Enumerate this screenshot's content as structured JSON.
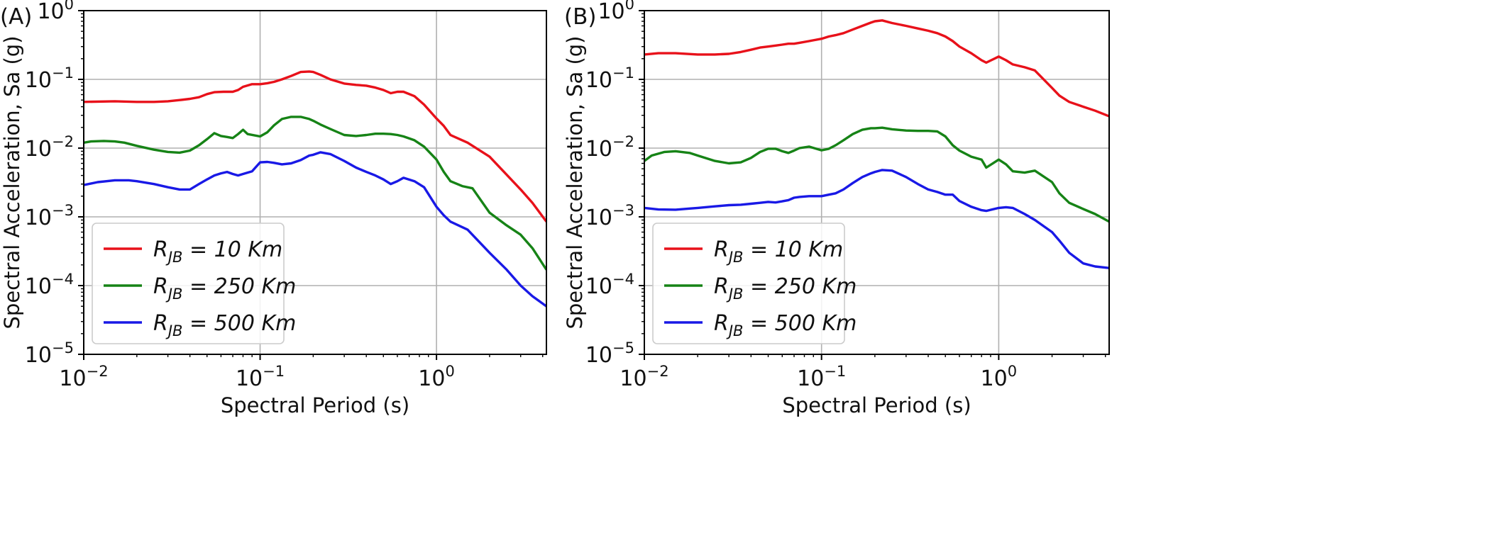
{
  "chart_data": [
    {
      "type": "line",
      "panel_label": "(A)",
      "xlabel": "Spectral Period (s)",
      "ylabel": "Spectral Acceleration, Sa (g)",
      "xscale": "log",
      "yscale": "log",
      "xlim": [
        0.01,
        4.2
      ],
      "ylim": [
        1e-05,
        1
      ],
      "x_ticks": [
        {
          "base": "10",
          "exp": "−2"
        },
        {
          "base": "10",
          "exp": "−1"
        },
        {
          "base": "10",
          "exp": "0"
        }
      ],
      "y_ticks": [
        {
          "base": "10",
          "exp": "−5"
        },
        {
          "base": "10",
          "exp": "−4"
        },
        {
          "base": "10",
          "exp": "−3"
        },
        {
          "base": "10",
          "exp": "−2"
        },
        {
          "base": "10",
          "exp": "−1"
        },
        {
          "base": "10",
          "exp": "0"
        }
      ],
      "grid": true,
      "legend_position": "lower-left",
      "series": [
        {
          "name": "RJB = 10 Km",
          "legend_R": "R",
          "legend_sub": "JB",
          "legend_rest": " = 10 Km",
          "color": "#e8111a",
          "x": [
            0.01,
            0.015,
            0.02,
            0.025,
            0.03,
            0.035,
            0.04,
            0.045,
            0.05,
            0.055,
            0.062,
            0.07,
            0.075,
            0.08,
            0.09,
            0.1,
            0.11,
            0.12,
            0.133,
            0.15,
            0.17,
            0.19,
            0.2,
            0.22,
            0.25,
            0.3,
            0.35,
            0.4,
            0.45,
            0.5,
            0.55,
            0.6,
            0.65,
            0.75,
            0.85,
            1.0,
            1.1,
            1.2,
            1.5,
            2.0,
            2.5,
            3.0,
            3.5,
            4.2
          ],
          "y": [
            0.047,
            0.048,
            0.047,
            0.047,
            0.048,
            0.05,
            0.052,
            0.055,
            0.061,
            0.065,
            0.066,
            0.066,
            0.07,
            0.078,
            0.085,
            0.085,
            0.088,
            0.092,
            0.1,
            0.112,
            0.128,
            0.13,
            0.128,
            0.116,
            0.1,
            0.087,
            0.083,
            0.081,
            0.076,
            0.07,
            0.063,
            0.066,
            0.066,
            0.057,
            0.043,
            0.027,
            0.021,
            0.0155,
            0.012,
            0.0075,
            0.0041,
            0.0025,
            0.0016,
            0.00085
          ]
        },
        {
          "name": "RJB = 250 Km",
          "legend_R": "R",
          "legend_sub": "JB",
          "legend_rest": " = 250 Km",
          "color": "#168316",
          "x": [
            0.01,
            0.011,
            0.013,
            0.015,
            0.017,
            0.02,
            0.025,
            0.03,
            0.035,
            0.04,
            0.045,
            0.05,
            0.055,
            0.06,
            0.065,
            0.07,
            0.075,
            0.08,
            0.085,
            0.1,
            0.11,
            0.12,
            0.133,
            0.15,
            0.17,
            0.19,
            0.2,
            0.22,
            0.25,
            0.3,
            0.35,
            0.4,
            0.45,
            0.5,
            0.55,
            0.6,
            0.65,
            0.75,
            0.85,
            1.0,
            1.1,
            1.2,
            1.4,
            1.6,
            2.0,
            2.5,
            3.0,
            3.5,
            4.2
          ],
          "y": [
            0.012,
            0.0125,
            0.0127,
            0.0125,
            0.012,
            0.0108,
            0.0095,
            0.0088,
            0.0086,
            0.0092,
            0.011,
            0.0135,
            0.0165,
            0.015,
            0.0145,
            0.014,
            0.016,
            0.0185,
            0.016,
            0.0148,
            0.017,
            0.0215,
            0.0265,
            0.0285,
            0.0285,
            0.0265,
            0.025,
            0.022,
            0.019,
            0.0155,
            0.015,
            0.0155,
            0.0162,
            0.0162,
            0.016,
            0.0155,
            0.0148,
            0.013,
            0.0105,
            0.0068,
            0.0045,
            0.0033,
            0.0028,
            0.0026,
            0.00115,
            0.00075,
            0.00055,
            0.00035,
            0.00017
          ]
        },
        {
          "name": "RJB = 500 Km",
          "legend_R": "R",
          "legend_sub": "JB",
          "legend_rest": " = 500 Km",
          "color": "#1919e6",
          "x": [
            0.01,
            0.012,
            0.015,
            0.018,
            0.02,
            0.025,
            0.03,
            0.035,
            0.04,
            0.045,
            0.05,
            0.055,
            0.06,
            0.065,
            0.07,
            0.075,
            0.08,
            0.09,
            0.1,
            0.11,
            0.12,
            0.133,
            0.15,
            0.17,
            0.19,
            0.2,
            0.22,
            0.25,
            0.3,
            0.35,
            0.4,
            0.45,
            0.5,
            0.55,
            0.6,
            0.65,
            0.75,
            0.85,
            1.0,
            1.1,
            1.2,
            1.5,
            2.0,
            2.5,
            3.0,
            3.5,
            4.2
          ],
          "y": [
            0.0029,
            0.0032,
            0.0034,
            0.0034,
            0.0033,
            0.003,
            0.0027,
            0.0025,
            0.0025,
            0.003,
            0.0035,
            0.004,
            0.0043,
            0.0045,
            0.0042,
            0.004,
            0.0042,
            0.0046,
            0.0062,
            0.0063,
            0.0061,
            0.0058,
            0.006,
            0.0067,
            0.0078,
            0.008,
            0.0087,
            0.0082,
            0.0065,
            0.0052,
            0.0045,
            0.004,
            0.0035,
            0.003,
            0.0033,
            0.0037,
            0.0033,
            0.0027,
            0.0014,
            0.00105,
            0.00085,
            0.00065,
            0.0003,
            0.00017,
            0.0001,
            7e-05,
            5e-05
          ]
        }
      ]
    },
    {
      "type": "line",
      "panel_label": "(B)",
      "xlabel": "Spectral Period (s)",
      "ylabel": "Spectral Acceleration, Sa (g)",
      "xscale": "log",
      "yscale": "log",
      "xlim": [
        0.01,
        4.2
      ],
      "ylim": [
        1e-05,
        1
      ],
      "x_ticks": [
        {
          "base": "10",
          "exp": "−2"
        },
        {
          "base": "10",
          "exp": "−1"
        },
        {
          "base": "10",
          "exp": "0"
        }
      ],
      "y_ticks": [
        {
          "base": "10",
          "exp": "−5"
        },
        {
          "base": "10",
          "exp": "−4"
        },
        {
          "base": "10",
          "exp": "−3"
        },
        {
          "base": "10",
          "exp": "−2"
        },
        {
          "base": "10",
          "exp": "−1"
        },
        {
          "base": "10",
          "exp": "0"
        }
      ],
      "grid": true,
      "legend_position": "lower-left",
      "series": [
        {
          "name": "RJB = 10 Km",
          "legend_R": "R",
          "legend_sub": "JB",
          "legend_rest": " = 10 Km",
          "color": "#e8111a",
          "x": [
            0.01,
            0.012,
            0.015,
            0.02,
            0.025,
            0.03,
            0.035,
            0.04,
            0.045,
            0.05,
            0.055,
            0.06,
            0.065,
            0.07,
            0.075,
            0.085,
            0.1,
            0.11,
            0.12,
            0.133,
            0.15,
            0.17,
            0.19,
            0.2,
            0.22,
            0.25,
            0.3,
            0.35,
            0.4,
            0.45,
            0.5,
            0.55,
            0.6,
            0.7,
            0.8,
            0.85,
            1.0,
            1.1,
            1.2,
            1.4,
            1.6,
            2.0,
            2.2,
            2.5,
            3.0,
            3.5,
            4.2
          ],
          "y": [
            0.23,
            0.24,
            0.24,
            0.23,
            0.23,
            0.235,
            0.25,
            0.27,
            0.29,
            0.3,
            0.31,
            0.32,
            0.33,
            0.33,
            0.34,
            0.36,
            0.39,
            0.42,
            0.44,
            0.47,
            0.53,
            0.6,
            0.67,
            0.7,
            0.72,
            0.66,
            0.6,
            0.55,
            0.51,
            0.47,
            0.42,
            0.36,
            0.3,
            0.24,
            0.19,
            0.175,
            0.215,
            0.19,
            0.165,
            0.15,
            0.135,
            0.075,
            0.058,
            0.047,
            0.04,
            0.035,
            0.029
          ]
        },
        {
          "name": "RJB = 250 Km",
          "legend_R": "R",
          "legend_sub": "JB",
          "legend_rest": " = 250 Km",
          "color": "#168316",
          "x": [
            0.01,
            0.011,
            0.013,
            0.015,
            0.018,
            0.02,
            0.025,
            0.03,
            0.035,
            0.04,
            0.045,
            0.05,
            0.055,
            0.06,
            0.065,
            0.07,
            0.075,
            0.085,
            0.1,
            0.11,
            0.12,
            0.133,
            0.15,
            0.17,
            0.19,
            0.2,
            0.22,
            0.25,
            0.3,
            0.35,
            0.4,
            0.45,
            0.5,
            0.55,
            0.6,
            0.7,
            0.8,
            0.85,
            1.0,
            1.1,
            1.2,
            1.4,
            1.6,
            2.0,
            2.2,
            2.5,
            3.0,
            3.5,
            4.2
          ],
          "y": [
            0.0065,
            0.0078,
            0.0088,
            0.009,
            0.0085,
            0.0078,
            0.0065,
            0.006,
            0.0062,
            0.0072,
            0.0088,
            0.0098,
            0.0098,
            0.009,
            0.0085,
            0.0092,
            0.01,
            0.0105,
            0.0093,
            0.0098,
            0.011,
            0.013,
            0.016,
            0.0185,
            0.0195,
            0.0195,
            0.0198,
            0.0188,
            0.018,
            0.0178,
            0.0178,
            0.0175,
            0.0148,
            0.011,
            0.0092,
            0.0075,
            0.0068,
            0.0052,
            0.0068,
            0.0058,
            0.0046,
            0.0044,
            0.0047,
            0.0032,
            0.0022,
            0.0016,
            0.0013,
            0.0011,
            0.00085
          ]
        },
        {
          "name": "RJB = 500 Km",
          "legend_R": "R",
          "legend_sub": "JB",
          "legend_rest": " = 500 Km",
          "color": "#1919e6",
          "x": [
            0.01,
            0.012,
            0.015,
            0.018,
            0.02,
            0.025,
            0.03,
            0.035,
            0.04,
            0.045,
            0.05,
            0.055,
            0.06,
            0.065,
            0.07,
            0.075,
            0.085,
            0.1,
            0.11,
            0.12,
            0.133,
            0.15,
            0.17,
            0.19,
            0.2,
            0.22,
            0.25,
            0.3,
            0.35,
            0.4,
            0.45,
            0.5,
            0.55,
            0.6,
            0.7,
            0.8,
            0.85,
            1.0,
            1.1,
            1.2,
            1.4,
            1.6,
            2.0,
            2.2,
            2.5,
            3.0,
            3.5,
            4.2
          ],
          "y": [
            0.00135,
            0.00128,
            0.00127,
            0.00132,
            0.00135,
            0.00142,
            0.00148,
            0.0015,
            0.00155,
            0.0016,
            0.00165,
            0.00162,
            0.00168,
            0.00175,
            0.0019,
            0.00195,
            0.002,
            0.002,
            0.0021,
            0.0022,
            0.0025,
            0.0031,
            0.0038,
            0.0043,
            0.0045,
            0.0048,
            0.0047,
            0.0038,
            0.003,
            0.0025,
            0.0023,
            0.0021,
            0.0021,
            0.0017,
            0.0014,
            0.00125,
            0.00122,
            0.00135,
            0.00138,
            0.00135,
            0.0011,
            0.0009,
            0.0006,
            0.00045,
            0.0003,
            0.00021,
            0.00019,
            0.00018
          ]
        }
      ]
    }
  ]
}
